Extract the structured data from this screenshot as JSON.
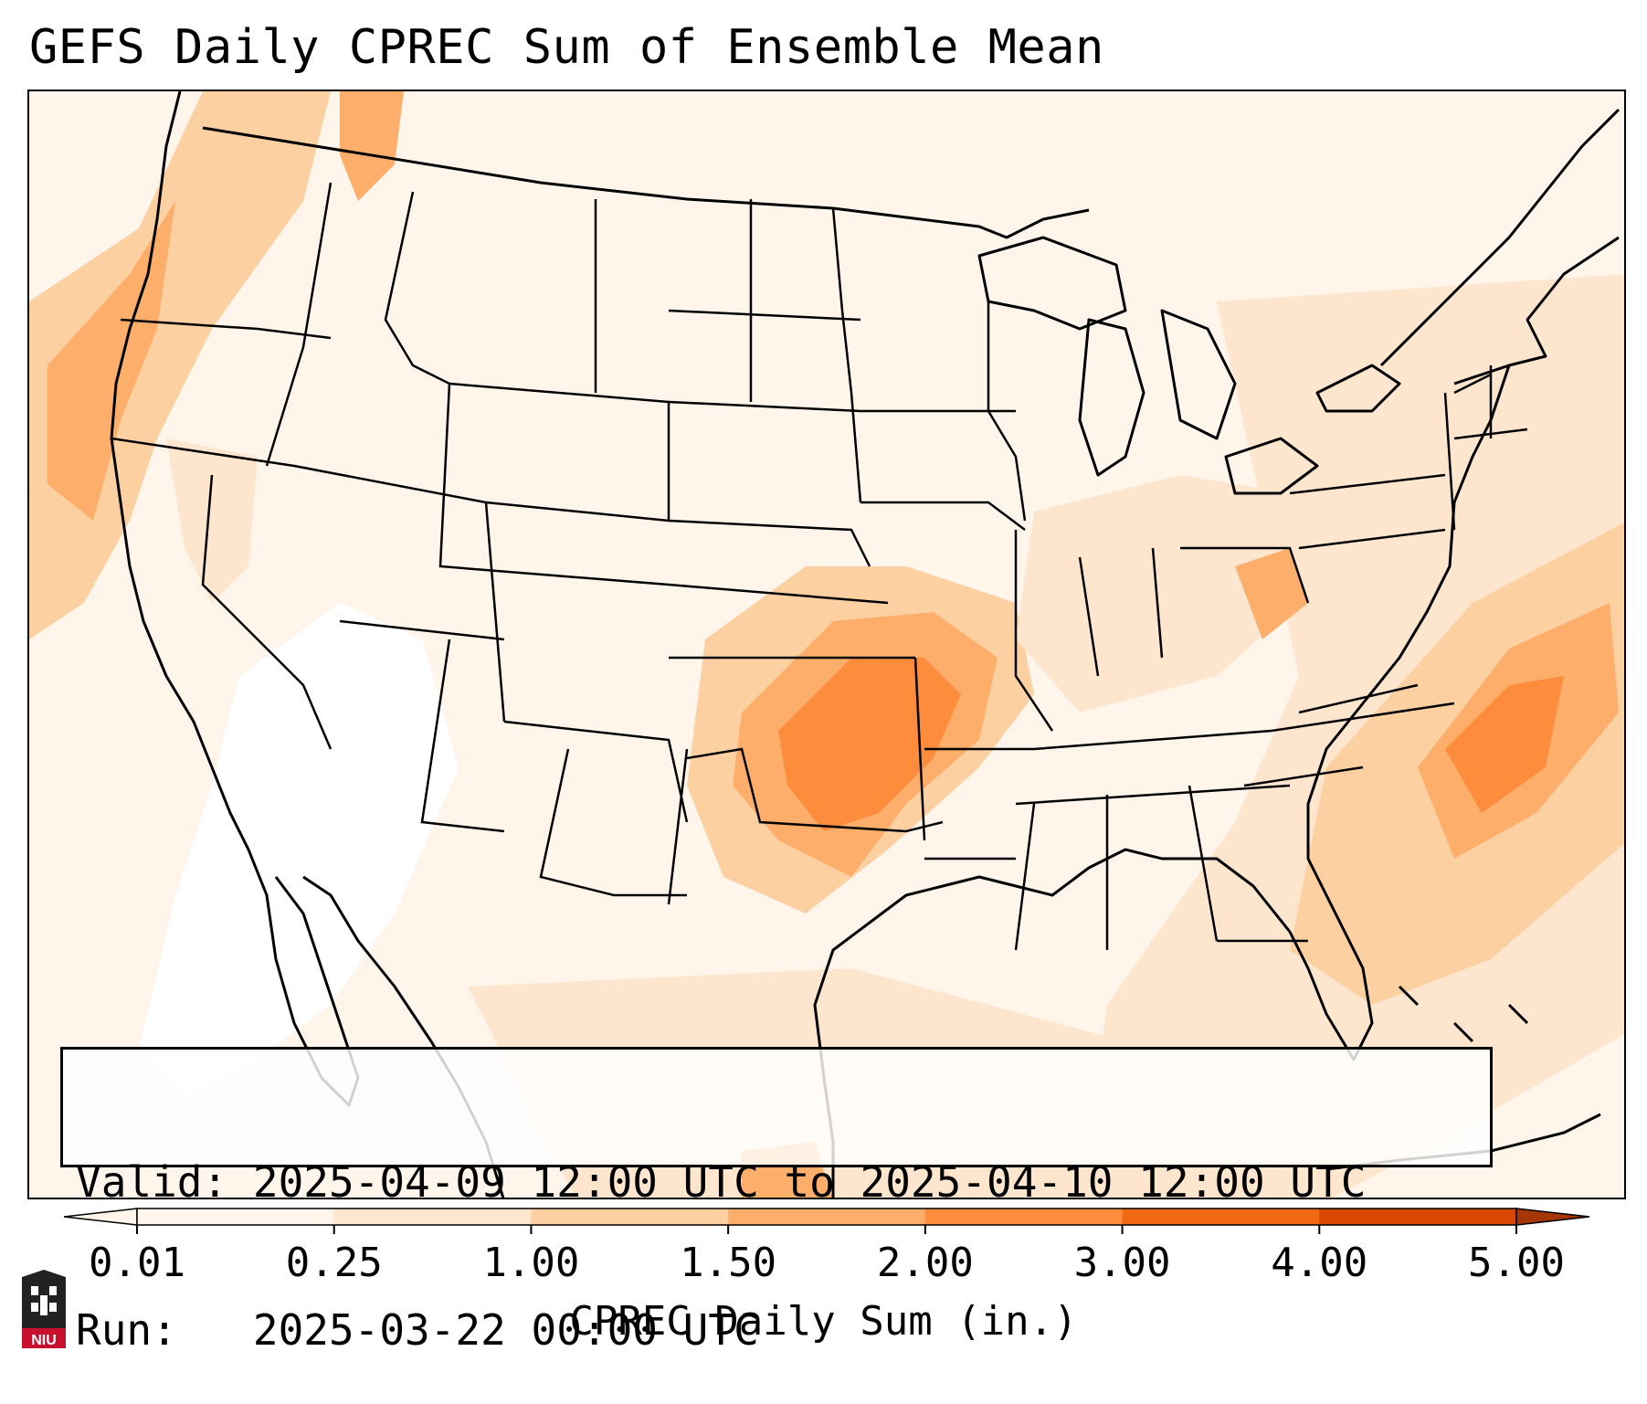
{
  "title": "GEFS Daily CPREC Sum of Ensemble Mean",
  "info": {
    "valid_label": "Valid:",
    "valid_value": "2025-04-09 12:00 UTC to 2025-04-10 12:00 UTC",
    "run_label": "Run:",
    "run_value": "2025-03-22 00:00 UTC"
  },
  "colorbar": {
    "label": "CPREC Daily Sum (in.)",
    "ticks": [
      "0.01",
      "0.25",
      "1.00",
      "1.50",
      "2.00",
      "3.00",
      "4.00",
      "5.00"
    ],
    "colors": [
      "#fff5eb",
      "#fee6ce",
      "#fdd0a2",
      "#fdae6b",
      "#fd8d3c",
      "#f16913",
      "#d94801",
      "#a63603"
    ],
    "extend": "both"
  },
  "logo": {
    "text": "NIU",
    "color": "#c8102e"
  },
  "map": {
    "projection": "Lambert Conformal",
    "region": "Contiguous United States",
    "precip_max_areas": [
      "Oklahoma",
      "North Texas",
      "Arkansas",
      "Western Atlantic off Carolinas"
    ]
  }
}
